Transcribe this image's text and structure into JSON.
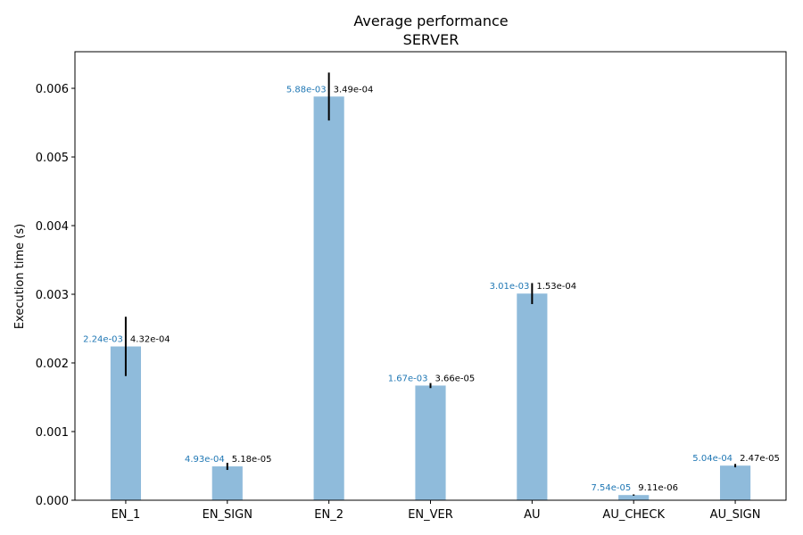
{
  "chart_data": {
    "type": "bar",
    "title": "Average performance",
    "subtitle": "SERVER",
    "xlabel": "",
    "ylabel": "Execution time (s)",
    "ylim": [
      0,
      0.006533
    ],
    "yticks": [
      0.0,
      0.001,
      0.002,
      0.003,
      0.004,
      0.005,
      0.006
    ],
    "ytick_labels": [
      "0.000",
      "0.001",
      "0.002",
      "0.003",
      "0.004",
      "0.005",
      "0.006"
    ],
    "categories": [
      "EN_1",
      "EN_SIGN",
      "EN_2",
      "EN_VER",
      "AU",
      "AU_CHECK",
      "AU_SIGN"
    ],
    "values": [
      0.00224,
      0.000493,
      0.00588,
      0.00167,
      0.00301,
      7.54e-05,
      0.000504
    ],
    "errors": [
      0.000432,
      5.18e-05,
      0.000349,
      3.66e-05,
      0.000153,
      9.11e-06,
      2.47e-05
    ],
    "value_labels": [
      "2.24e-03",
      "4.93e-04",
      "5.88e-03",
      "1.67e-03",
      "3.01e-03",
      "7.54e-05",
      "5.04e-04"
    ],
    "error_labels": [
      "4.32e-04",
      "5.18e-05",
      "3.49e-04",
      "3.66e-05",
      "1.53e-04",
      "9.11e-06",
      "2.47e-05"
    ],
    "grid": false,
    "colors": {
      "bar": "#8fbbdb",
      "mean_label": "#1f77b4",
      "error_bar": "#000000"
    }
  }
}
